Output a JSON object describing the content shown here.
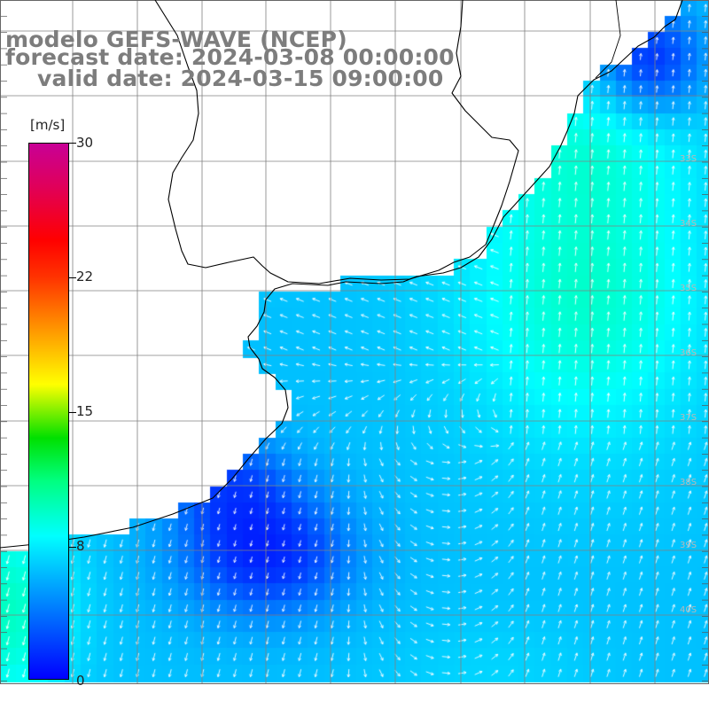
{
  "titles": {
    "model": "modelo GEFS-WAVE (NCEP)",
    "forecast": "forecast date: 2024-03-08 00:00:00",
    "valid": "valid date: 2024-03-15 09:00:00"
  },
  "colorbar": {
    "unit": "[m/s]",
    "ticks": [
      "30",
      "22",
      "15",
      "8",
      "0"
    ],
    "colors": [
      "#0000ff",
      "#00aaff",
      "#00ffff",
      "#00ff80",
      "#00e000",
      "#ffff00",
      "#ff9900",
      "#ff0000",
      "#c80096"
    ]
  },
  "lat_labels": [
    "33S",
    "34S",
    "35S",
    "36S",
    "37S",
    "38S",
    "39S",
    "40S"
  ],
  "colors": {
    "title": "#7d7d7d",
    "grid": "#808080",
    "coast": "#000000",
    "arrow": "#ffffff",
    "land": "#ffffff"
  }
}
